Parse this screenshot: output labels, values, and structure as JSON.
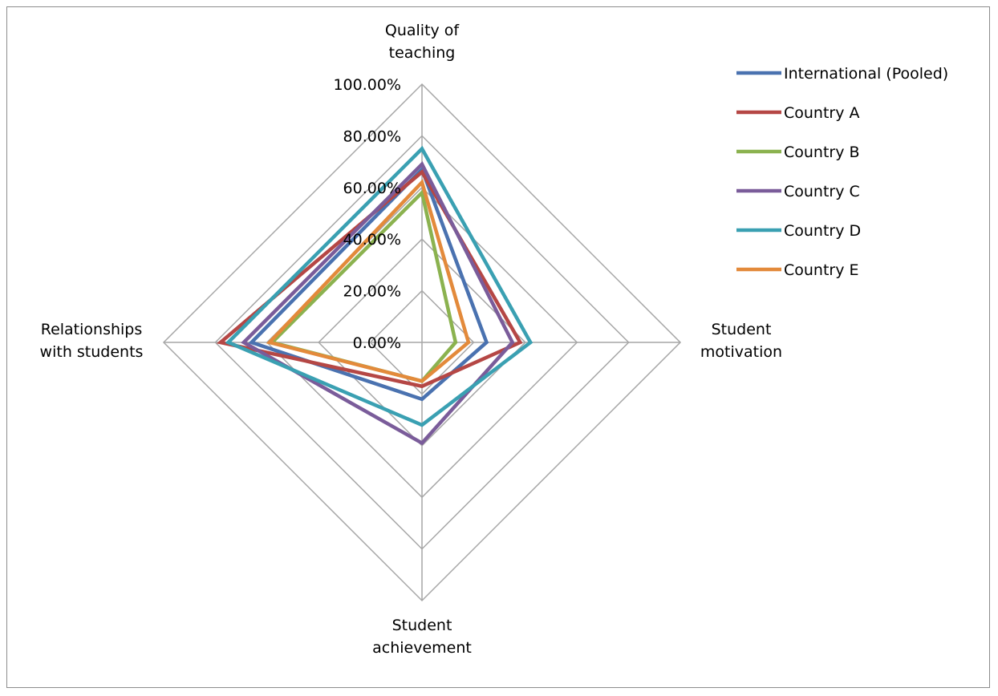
{
  "chart_data": {
    "type": "radar",
    "axes": [
      {
        "label_lines": [
          "Quality of",
          "teaching"
        ]
      },
      {
        "label_lines": [
          "Student",
          "motivation"
        ]
      },
      {
        "label_lines": [
          "Student",
          "achievement"
        ]
      },
      {
        "label_lines": [
          "Relationships",
          "with students"
        ]
      }
    ],
    "ticks": [
      "0.00%",
      "20.00%",
      "40.00%",
      "60.00%",
      "80.00%",
      "100.00%"
    ],
    "rlim": [
      0,
      100
    ],
    "grid": true,
    "legend_position": "right",
    "series": [
      {
        "name": "International (Pooled)",
        "color": "#4a72b0",
        "values": [
          67,
          25,
          22,
          66
        ]
      },
      {
        "name": "Country A",
        "color": "#b54745",
        "values": [
          66,
          38,
          17,
          78
        ]
      },
      {
        "name": "Country B",
        "color": "#8bb24f",
        "values": [
          58,
          13,
          15,
          58
        ]
      },
      {
        "name": "Country C",
        "color": "#7a5c9a",
        "values": [
          69,
          35,
          39,
          69
        ]
      },
      {
        "name": "Country D",
        "color": "#3aa0b2",
        "values": [
          75,
          42,
          32,
          75
        ]
      },
      {
        "name": "Country E",
        "color": "#e38a3b",
        "values": [
          62,
          18,
          15,
          59
        ]
      }
    ]
  }
}
